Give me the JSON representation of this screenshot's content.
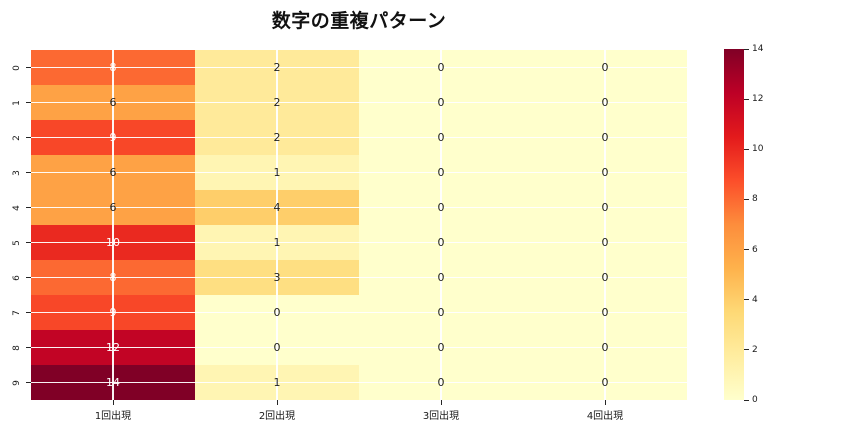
{
  "title": "数字の重複パターン",
  "chart_data": {
    "type": "heatmap",
    "title": "数字の重複パターン",
    "rows": [
      "0",
      "1",
      "2",
      "3",
      "4",
      "5",
      "6",
      "7",
      "8",
      "9"
    ],
    "columns": [
      "1回出現",
      "2回出現",
      "3回出現",
      "4回出現"
    ],
    "values": [
      [
        8,
        2,
        0,
        0
      ],
      [
        6,
        2,
        0,
        0
      ],
      [
        9,
        2,
        0,
        0
      ],
      [
        6,
        1,
        0,
        0
      ],
      [
        6,
        4,
        0,
        0
      ],
      [
        10,
        1,
        0,
        0
      ],
      [
        8,
        3,
        0,
        0
      ],
      [
        9,
        0,
        0,
        0
      ],
      [
        12,
        0,
        0,
        0
      ],
      [
        14,
        1,
        0,
        0
      ]
    ],
    "vmin": 0,
    "vmax": 14,
    "colormap": "YlOrRd",
    "colormap_stops": [
      "#ffffcc",
      "#ffeda0",
      "#fed976",
      "#feb24c",
      "#fd8d3c",
      "#fc4e2a",
      "#e31a1c",
      "#bd0026",
      "#800026"
    ],
    "colorbar_ticks": [
      0,
      2,
      4,
      6,
      8,
      10,
      12,
      14
    ],
    "annotated": true,
    "annotation_color_light": "#ffffff",
    "annotation_color_dark": "#1f1f1f",
    "grid": true,
    "grid_color": "#ffffff",
    "background": "#ffffff",
    "legend_position": "right-colorbar"
  }
}
